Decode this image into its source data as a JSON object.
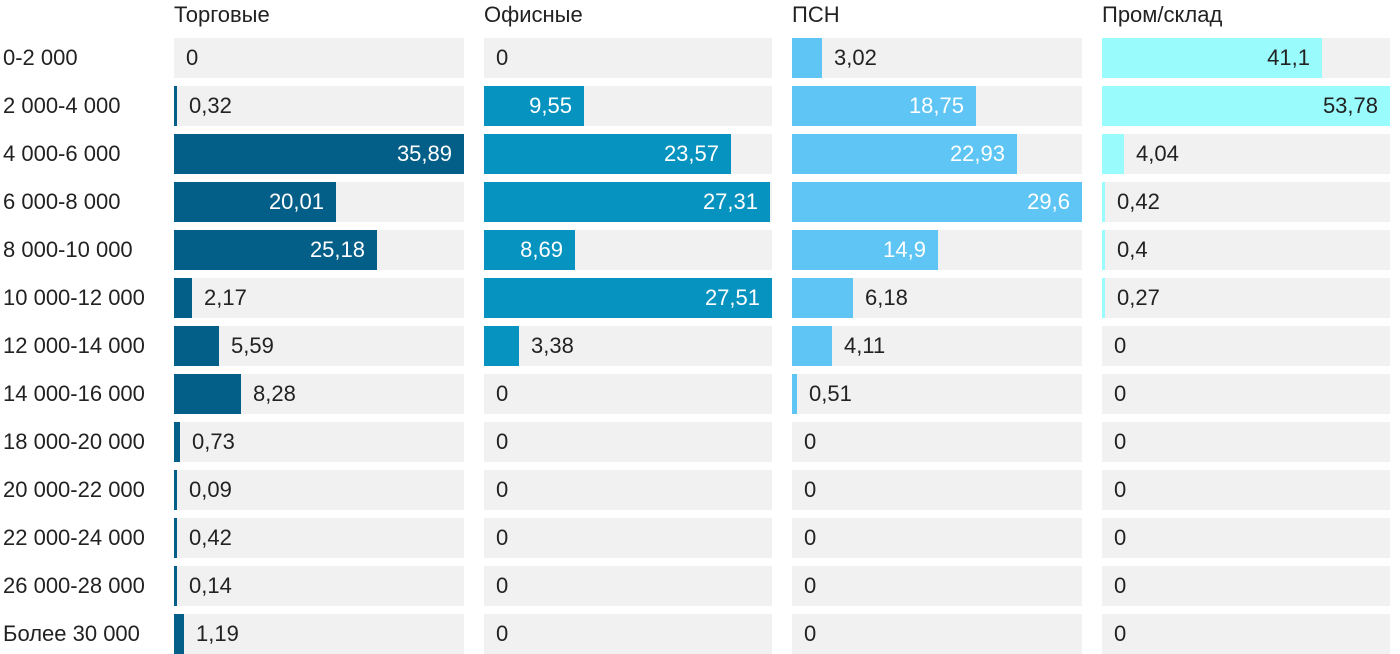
{
  "chart_data": {
    "type": "bar",
    "orientation": "horizontal",
    "layout": "small-multiples",
    "xlim": [
      0,
      53.78
    ],
    "categories": [
      "0-2 000",
      "2 000-4 000",
      "4 000-6 000",
      "6 000-8 000",
      "8 000-10 000",
      "10 000-12 000",
      "12 000-14 000",
      "14 000-16 000",
      "18 000-20 000",
      "20 000-22 000",
      "22 000-24 000",
      "26 000-28 000",
      "Более 30 000"
    ],
    "series": [
      {
        "name": "Торговые",
        "color": "#045f88",
        "scale_max": 35.89,
        "values": [
          0,
          0.32,
          35.89,
          20.01,
          25.18,
          2.17,
          5.59,
          8.28,
          0.73,
          0.09,
          0.42,
          0.14,
          1.19
        ],
        "labels": [
          "0",
          "0,32",
          "35,89",
          "20,01",
          "25,18",
          "2,17",
          "5,59",
          "8,28",
          "0,73",
          "0,09",
          "0,42",
          "0,14",
          "1,19"
        ]
      },
      {
        "name": "Офисные",
        "color": "#0793bf",
        "scale_max": 27.51,
        "values": [
          0,
          9.55,
          23.57,
          27.31,
          8.69,
          27.51,
          3.38,
          0,
          0,
          0,
          0,
          0,
          0
        ],
        "labels": [
          "0",
          "9,55",
          "23,57",
          "27,31",
          "8,69",
          "27,51",
          "3,38",
          "0",
          "0",
          "0",
          "0",
          "0",
          "0"
        ]
      },
      {
        "name": "ПСН",
        "color": "#5ec5f4",
        "scale_max": 29.6,
        "values": [
          3.02,
          18.75,
          22.93,
          29.6,
          14.9,
          6.18,
          4.11,
          0.51,
          0,
          0,
          0,
          0,
          0
        ],
        "labels": [
          "3,02",
          "18,75",
          "22,93",
          "29,6",
          "14,9",
          "6,18",
          "4,11",
          "0,51",
          "0",
          "0",
          "0",
          "0",
          "0"
        ]
      },
      {
        "name": "Пром/склад",
        "color": "#9afbfd",
        "scale_max": 53.78,
        "values": [
          41.1,
          53.78,
          4.04,
          0.42,
          0.4,
          0.27,
          0,
          0,
          0,
          0,
          0,
          0,
          0
        ],
        "labels": [
          "41,1",
          "53,78",
          "4,04",
          "0,42",
          "0,4",
          "0,27",
          "0",
          "0",
          "0",
          "0",
          "0",
          "0",
          "0"
        ]
      }
    ]
  }
}
